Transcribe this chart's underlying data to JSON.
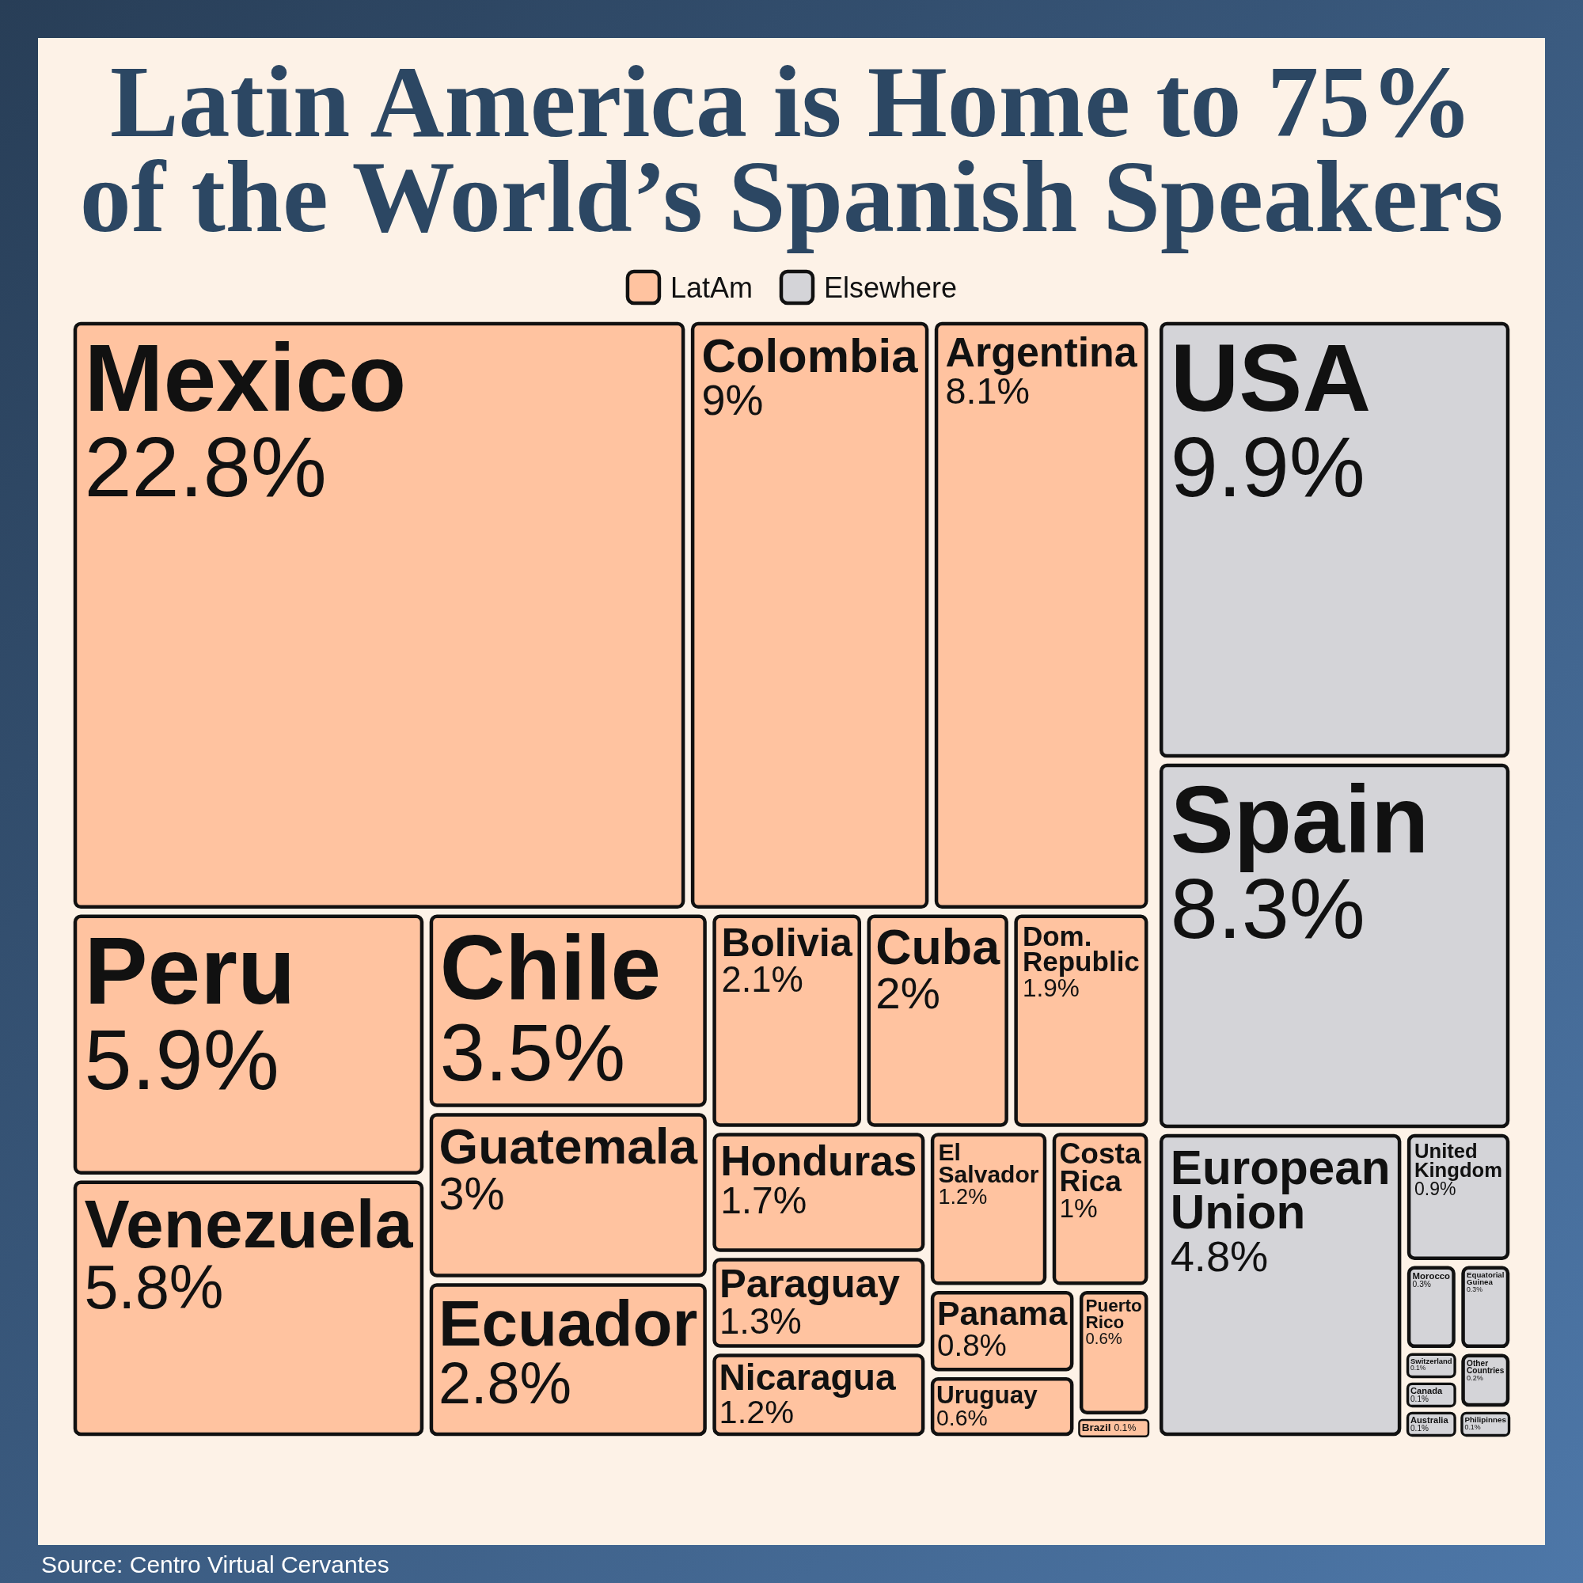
{
  "chart_data": {
    "type": "other",
    "title": "Latin America is Home to 75% of the World’s Spanish Speakers",
    "categories": [
      "Mexico",
      "Colombia",
      "Argentina",
      "Peru",
      "Venezuela",
      "Chile",
      "Guatemala",
      "Ecuador",
      "Bolivia",
      "Cuba",
      "Dom. Republic",
      "Honduras",
      "Paraguay",
      "Nicaragua",
      "El Salvador",
      "Costa Rica",
      "Panama",
      "Uruguay",
      "Puerto Rico",
      "Brazil",
      "USA",
      "Spain",
      "European Union",
      "United Kingdom",
      "Morocco",
      "Equatorial Guinea",
      "Switzerland",
      "Canada",
      "Australia",
      "Other Countries",
      "Philipinnes"
    ],
    "series": [
      {
        "name": "LatAm",
        "color": "#ffc3a0",
        "values": [
          22.8,
          9,
          8.1,
          5.9,
          5.8,
          3.5,
          3,
          2.8,
          2.1,
          2,
          1.9,
          1.7,
          1.3,
          1.2,
          1.2,
          1,
          0.8,
          0.6,
          0.6,
          0.1,
          null,
          null,
          null,
          null,
          null,
          null,
          null,
          null,
          null,
          null,
          null
        ],
        "value_labels": [
          "22.8%",
          "9%",
          "8.1%",
          "5.9%",
          "5.8%",
          "3.5%",
          "3%",
          "2.8%",
          "2.1%",
          "2%",
          "1.9%",
          "1.7%",
          "1.3%",
          "1.2%",
          "1.2%",
          "1%",
          "0.8%",
          "0.6%",
          "0.6%",
          "0.1%",
          null,
          null,
          null,
          null,
          null,
          null,
          null,
          null,
          null,
          null,
          null
        ]
      },
      {
        "name": "Elsewhere",
        "color": "#d4d4d8",
        "values": [
          null,
          null,
          null,
          null,
          null,
          null,
          null,
          null,
          null,
          null,
          null,
          null,
          null,
          null,
          null,
          null,
          null,
          null,
          null,
          null,
          9.9,
          8.3,
          4.8,
          0.9,
          0.3,
          0.3,
          0.1,
          0.1,
          0.1,
          0.2,
          0.1
        ],
        "value_labels": [
          null,
          null,
          null,
          null,
          null,
          null,
          null,
          null,
          null,
          null,
          null,
          null,
          null,
          null,
          null,
          null,
          null,
          null,
          null,
          null,
          "9.9%",
          "8.3%",
          "4.8%",
          "0.9%",
          "0.3%",
          "0.3%",
          "0.1%",
          "0.1%",
          "0.1%",
          "0.2%",
          "0.1%"
        ]
      }
    ],
    "legend": "top",
    "annotations": [
      "Source: Centro Virtual Cervantes"
    ]
  }
}
